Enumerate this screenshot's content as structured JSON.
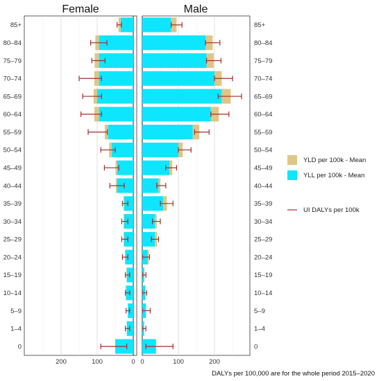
{
  "chart_data": {
    "type": "bar",
    "panels": [
      "Female",
      "Male"
    ],
    "categories": [
      "85+",
      "80–84",
      "75–79",
      "70–74",
      "65–69",
      "60–64",
      "55–59",
      "50–54",
      "45–49",
      "40–44",
      "35–39",
      "30–34",
      "25–29",
      "20–24",
      "15–19",
      "10–14",
      "5–9",
      "1–4",
      "0"
    ],
    "series": [
      {
        "name": "YLD per 100k - Mean",
        "color": "#e1c586",
        "female": [
          6,
          10,
          12,
          13,
          10,
          13,
          9,
          7,
          4,
          3,
          2,
          2,
          2,
          1,
          1,
          1,
          0,
          0,
          0
        ],
        "male": [
          15,
          20,
          20,
          20,
          25,
          22,
          18,
          12,
          8,
          5,
          10,
          5,
          6,
          3,
          1,
          1,
          0,
          0,
          0
        ]
      },
      {
        "name": "YLL per 100k - Mean",
        "color": "#0ee6ff",
        "female": [
          35,
          95,
          95,
          95,
          100,
          95,
          70,
          60,
          45,
          45,
          25,
          25,
          25,
          22,
          18,
          20,
          15,
          18,
          50
        ],
        "male": [
          80,
          175,
          178,
          200,
          220,
          190,
          140,
          100,
          75,
          45,
          58,
          35,
          35,
          15,
          5,
          8,
          10,
          5,
          38
        ]
      }
    ],
    "uncertainty": {
      "name": "UI DALYs per 100k",
      "color": "#a52a2a",
      "female": [
        [
          33,
          45
        ],
        [
          73,
          118
        ],
        [
          78,
          115
        ],
        [
          88,
          150
        ],
        [
          88,
          140
        ],
        [
          88,
          145
        ],
        [
          72,
          125
        ],
        [
          50,
          90
        ],
        [
          40,
          80
        ],
        [
          25,
          65
        ],
        [
          15,
          30
        ],
        [
          15,
          32
        ],
        [
          15,
          32
        ],
        [
          15,
          30
        ],
        [
          10,
          22
        ],
        [
          10,
          22
        ],
        [
          10,
          20
        ],
        [
          10,
          22
        ],
        [
          18,
          90
        ]
      ],
      "male": [
        [
          80,
          110
        ],
        [
          175,
          215
        ],
        [
          178,
          218
        ],
        [
          200,
          250
        ],
        [
          210,
          275
        ],
        [
          190,
          240
        ],
        [
          145,
          185
        ],
        [
          100,
          135
        ],
        [
          65,
          95
        ],
        [
          40,
          65
        ],
        [
          50,
          85
        ],
        [
          28,
          50
        ],
        [
          25,
          45
        ],
        [
          0,
          20
        ],
        [
          0,
          10
        ],
        [
          0,
          12
        ],
        [
          0,
          22
        ],
        [
          0,
          10
        ],
        [
          10,
          85
        ]
      ]
    },
    "x_ticks_female": [
      200,
      100,
      0
    ],
    "x_ticks_male": [
      0,
      100,
      200
    ],
    "xlim_female": [
      0,
      305
    ],
    "xlim_male": [
      0,
      305
    ],
    "caption": "DALYs per 100,000 are for the whole period 2015–2020",
    "legend_position": "right",
    "grid": true
  }
}
